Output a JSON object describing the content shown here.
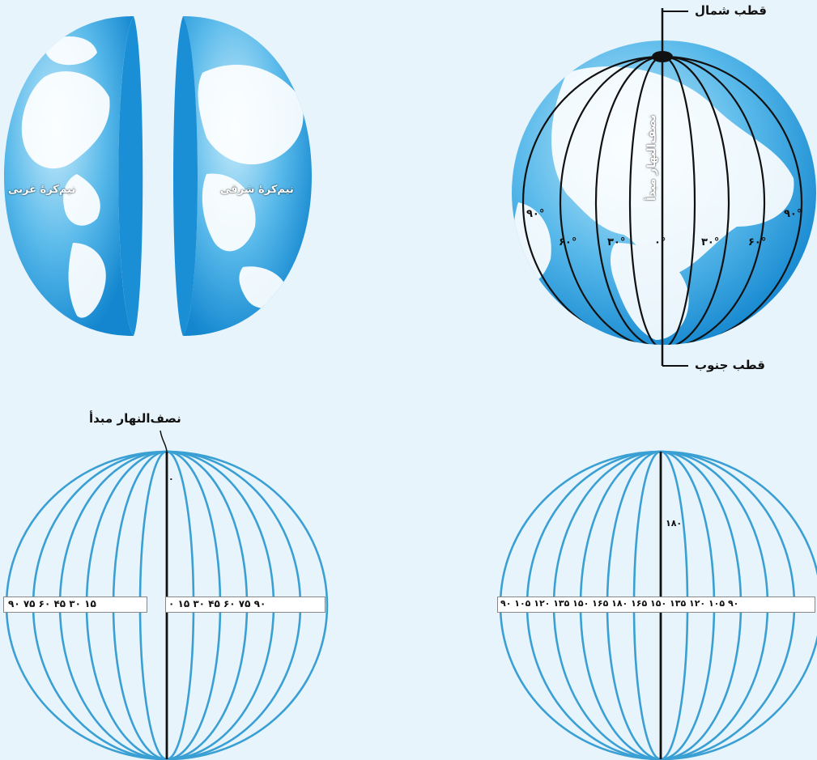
{
  "labels": {
    "north_pole": "قطب شمال",
    "south_pole": "قطب جنوب",
    "prime_meridian_vertical": "نصف‌النهار مبدأ",
    "prime_meridian_top": "نصف‌النهار مبدأ",
    "western_hemisphere": "نیم‌کرهٔ غربی",
    "eastern_hemisphere": "نیم‌کرهٔ شرقی"
  },
  "globe_degrees": {
    "left_90": "۹۰°",
    "left_60": "۶۰°",
    "left_30": "۳۰°",
    "zero": "۰°",
    "right_30": "۳۰°",
    "right_60": "۶۰°",
    "right_90": "۹۰°"
  },
  "bottom_left": {
    "scale_left": "۹۰ ۷۵ ۶۰ ۴۵ ۳۰ ۱۵",
    "scale_right": "۰ ۱۵ ۳۰ ۴۵ ۶۰ ۷۵ ۹۰",
    "center_mark": "۰"
  },
  "bottom_right": {
    "scale": "۹۰ ۱۰۵ ۱۲۰ ۱۳۵ ۱۵۰ ۱۶۵ ۱۸۰ ۱۶۵ ۱۵۰ ۱۳۵ ۱۲۰ ۱۰۵ ۹۰",
    "center_mark": "۱۸۰"
  },
  "colors": {
    "ocean_light": "#bfe6f8",
    "ocean_dark": "#1b8fd6",
    "land": "#ffffff",
    "meridian_blue": "#3aa0d4",
    "line_black": "#111111",
    "background": "#e8f4fb"
  }
}
